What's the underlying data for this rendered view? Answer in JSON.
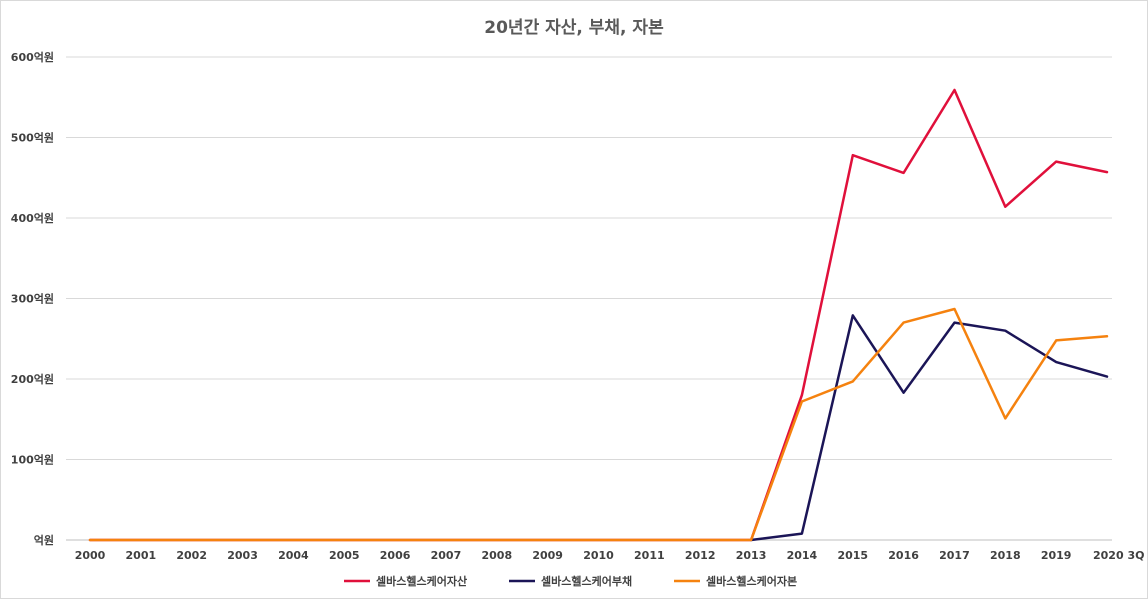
{
  "chart_data": {
    "type": "line",
    "title": "20년간 자산, 부채, 자본",
    "categories": [
      "2000",
      "2001",
      "2002",
      "2003",
      "2004",
      "2005",
      "2006",
      "2007",
      "2008",
      "2009",
      "2010",
      "2011",
      "2012",
      "2013",
      "2014",
      "2015",
      "2016",
      "2017",
      "2018",
      "2019",
      "2020 3Q"
    ],
    "y_tick_labels": [
      "억원",
      "100억원",
      "200억원",
      "300억원",
      "400억원",
      "500억원",
      "600억원"
    ],
    "ylim": [
      0,
      600
    ],
    "y_step": 100,
    "grid": true,
    "legend_position": "bottom",
    "series": [
      {
        "name": "셀바스헬스케어자산",
        "color": "#e0103b",
        "values": [
          0,
          0,
          0,
          0,
          0,
          0,
          0,
          0,
          0,
          0,
          0,
          0,
          0,
          0,
          180,
          478,
          456,
          559,
          414,
          470,
          457
        ]
      },
      {
        "name": "셀바스헬스케어부채",
        "color": "#1b1557",
        "values": [
          null,
          null,
          null,
          null,
          null,
          null,
          null,
          null,
          null,
          null,
          null,
          null,
          null,
          0,
          8,
          279,
          183,
          270,
          260,
          221,
          203
        ]
      },
      {
        "name": "셀바스헬스케어자본",
        "color": "#f5820f",
        "values": [
          0,
          0,
          0,
          0,
          0,
          0,
          0,
          0,
          0,
          0,
          0,
          0,
          0,
          0,
          172,
          197,
          270,
          287,
          151,
          248,
          253
        ]
      }
    ]
  }
}
